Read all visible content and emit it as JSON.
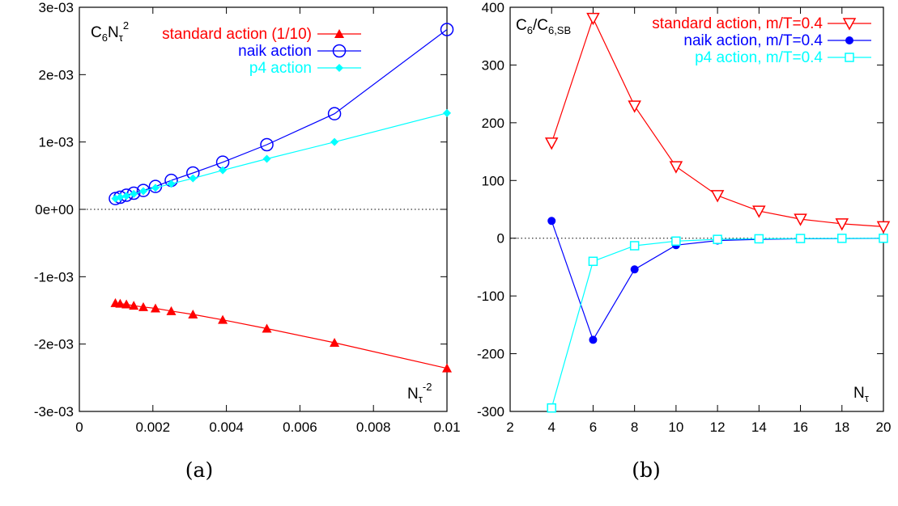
{
  "chart_data": [
    {
      "type": "line",
      "panel_label": "(a)",
      "ylabel_main": "C",
      "ylabel_sub": "6",
      "ylabel_main2": "N",
      "ylabel_sub2": "τ",
      "ylabel_sup": "2",
      "xlabel_main": "N",
      "xlabel_sub": "τ",
      "xlabel_sup": "-2",
      "xlim": [
        0,
        0.01
      ],
      "ylim": [
        -0.003,
        0.003
      ],
      "xticks": [
        0,
        0.002,
        0.004,
        0.006,
        0.008,
        0.01
      ],
      "xtick_labels": [
        "0",
        "0.002",
        "0.004",
        "0.006",
        "0.008",
        "0.01"
      ],
      "yticks": [
        -0.003,
        -0.002,
        -0.001,
        0,
        0.001,
        0.002,
        0.003
      ],
      "ytick_labels": [
        "-3e-03",
        "-2e-03",
        "-1e-03",
        "0e+00",
        "1e-03",
        "2e-03",
        "3e-03"
      ],
      "zero_line": true,
      "legend_position": "top-right",
      "series": [
        {
          "name": "standard action (1/10)",
          "color": "#ff0000",
          "marker": "filled-triangle",
          "x": [
            0.01,
            0.00694,
            0.0051,
            0.0039,
            0.00309,
            0.0025,
            0.00207,
            0.00174,
            0.00148,
            0.00128,
            0.00111,
            0.00098
          ],
          "y": [
            -0.00236,
            -0.00198,
            -0.00177,
            -0.00164,
            -0.00156,
            -0.00151,
            -0.00147,
            -0.00145,
            -0.00143,
            -0.00141,
            -0.0014,
            -0.00139
          ]
        },
        {
          "name": "naik action",
          "color": "#0000ff",
          "marker": "open-circle",
          "x": [
            0.01,
            0.00694,
            0.0051,
            0.0039,
            0.00309,
            0.0025,
            0.00207,
            0.00174,
            0.00148,
            0.00128,
            0.00111,
            0.00098
          ],
          "y": [
            0.00267,
            0.00142,
            0.00096,
            0.0007,
            0.00054,
            0.00043,
            0.00034,
            0.00028,
            0.00024,
            0.00021,
            0.00018,
            0.00016
          ]
        },
        {
          "name": "p4 action",
          "color": "#00ffff",
          "marker": "filled-diamond",
          "x": [
            0.01,
            0.00694,
            0.0051,
            0.0039,
            0.00309,
            0.0025,
            0.00207,
            0.00174,
            0.00148,
            0.00128,
            0.00111,
            0.00098
          ],
          "y": [
            0.00143,
            0.001,
            0.00075,
            0.00058,
            0.00046,
            0.00038,
            0.00032,
            0.00027,
            0.00023,
            0.0002,
            0.00018,
            0.00016
          ]
        }
      ]
    },
    {
      "type": "line",
      "panel_label": "(b)",
      "ylabel_main": "C",
      "ylabel_sub": "6",
      "ylabel_main2": "/C",
      "ylabel_sub2": "6,SB",
      "xlabel_main": "N",
      "xlabel_sub": "τ",
      "xlim": [
        2,
        20
      ],
      "ylim": [
        -300,
        400
      ],
      "xticks": [
        2,
        4,
        6,
        8,
        10,
        12,
        14,
        16,
        18,
        20
      ],
      "xtick_labels": [
        "2",
        "4",
        "6",
        "8",
        "10",
        "12",
        "14",
        "16",
        "18",
        "20"
      ],
      "yticks": [
        -300,
        -200,
        -100,
        0,
        100,
        200,
        300,
        400
      ],
      "ytick_labels": [
        "-300",
        "-200",
        "-100",
        "0",
        "100",
        "200",
        "300",
        "400"
      ],
      "zero_line": true,
      "legend_position": "top-right",
      "series": [
        {
          "name": "standard action, m/T=0.4",
          "color": "#ff0000",
          "marker": "open-triangle-down",
          "x": [
            4,
            6,
            8,
            10,
            12,
            14,
            16,
            18,
            20
          ],
          "y": [
            165,
            381,
            229,
            124,
            74,
            47,
            33,
            25,
            20
          ]
        },
        {
          "name": "naik action, m/T=0.4",
          "color": "#0000ff",
          "marker": "filled-circle",
          "x": [
            4,
            6,
            8,
            10,
            12,
            14,
            16,
            18,
            20
          ],
          "y": [
            30,
            -176,
            -54,
            -12,
            -4,
            -2,
            -1,
            -0.5,
            -0.2
          ]
        },
        {
          "name": "p4 action, m/T=0.4",
          "color": "#00ffff",
          "marker": "open-square",
          "x": [
            4,
            6,
            8,
            10,
            12,
            14,
            16,
            18,
            20
          ],
          "y": [
            -294,
            -40,
            -13,
            -5,
            -2,
            -1,
            -0.5,
            -0.2,
            -0.1
          ]
        }
      ]
    }
  ]
}
